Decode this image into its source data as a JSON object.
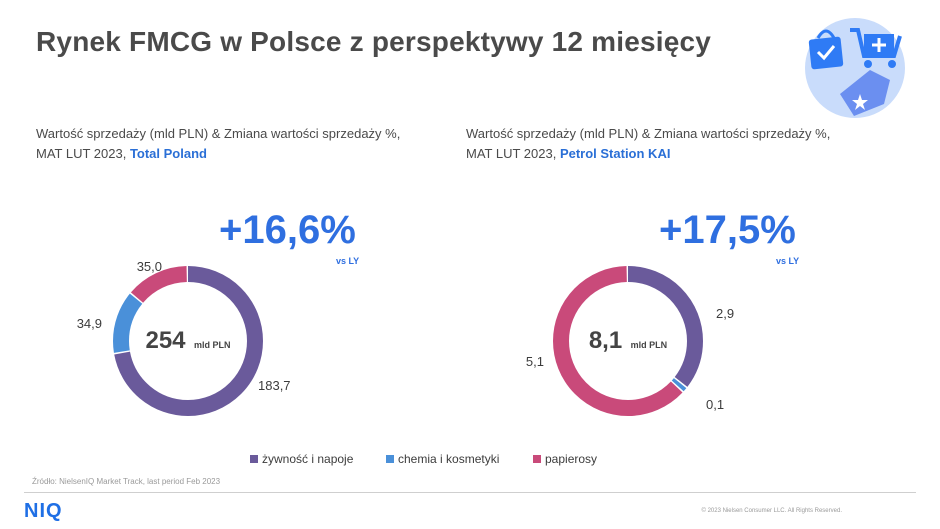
{
  "title": "Rynek FMCG w Polsce z perspektywy 12 miesięcy",
  "left_panel": {
    "subtitle_line1": "Wartość sprzedaży (mld PLN) & Zmiana wartości sprzedaży %,",
    "subtitle_line2_prefix": "MAT LUT 2023, ",
    "subtitle_highlight": "Total Poland",
    "growth": "+16,6%",
    "vs_label": "vs LY",
    "center_value": "254",
    "center_unit": "mld PLN"
  },
  "right_panel": {
    "subtitle_line1": "Wartość sprzedaży (mld PLN) & Zmiana wartości sprzedaży %,",
    "subtitle_line2_prefix": "MAT LUT 2023, ",
    "subtitle_highlight": "Petrol Station KAI",
    "growth": "+17,5%",
    "vs_label": "vs LY",
    "center_value": "8,1",
    "center_unit": "mld PLN"
  },
  "chart_data": [
    {
      "type": "pie",
      "title": "Total Poland",
      "categories": [
        "żywność i napoje",
        "chemia i kosmetyki",
        "papierosy"
      ],
      "values": [
        183.7,
        34.9,
        35.0
      ],
      "labels": [
        "183,7",
        "34,9",
        "35,0"
      ],
      "colors": [
        "#6a5a9b",
        "#4a90d9",
        "#c94a7a"
      ],
      "total_label": "254 mld PLN",
      "growth_vs_ly": "+16,6%"
    },
    {
      "type": "pie",
      "title": "Petrol Station KAI",
      "categories": [
        "żywność i napoje",
        "chemia i kosmetyki",
        "papierosy"
      ],
      "values": [
        2.9,
        0.1,
        5.1
      ],
      "labels": [
        "2,9",
        "0,1",
        "5,1"
      ],
      "colors": [
        "#6a5a9b",
        "#4a90d9",
        "#c94a7a"
      ],
      "total_label": "8,1 mld PLN",
      "growth_vs_ly": "+17,5%"
    }
  ],
  "legend": {
    "items": [
      {
        "label": "żywność i napoje",
        "color": "#6a5a9b"
      },
      {
        "label": "chemia i kosmetyki",
        "color": "#4a90d9"
      },
      {
        "label": "papierosy",
        "color": "#c94a7a"
      }
    ]
  },
  "footer": {
    "source": "Źródło: NielsenIQ Market Track, last period Feb 2023",
    "logo": "NIQ",
    "copyright": "© 2023 Nielsen Consumer LLC. All Rights Reserved."
  }
}
